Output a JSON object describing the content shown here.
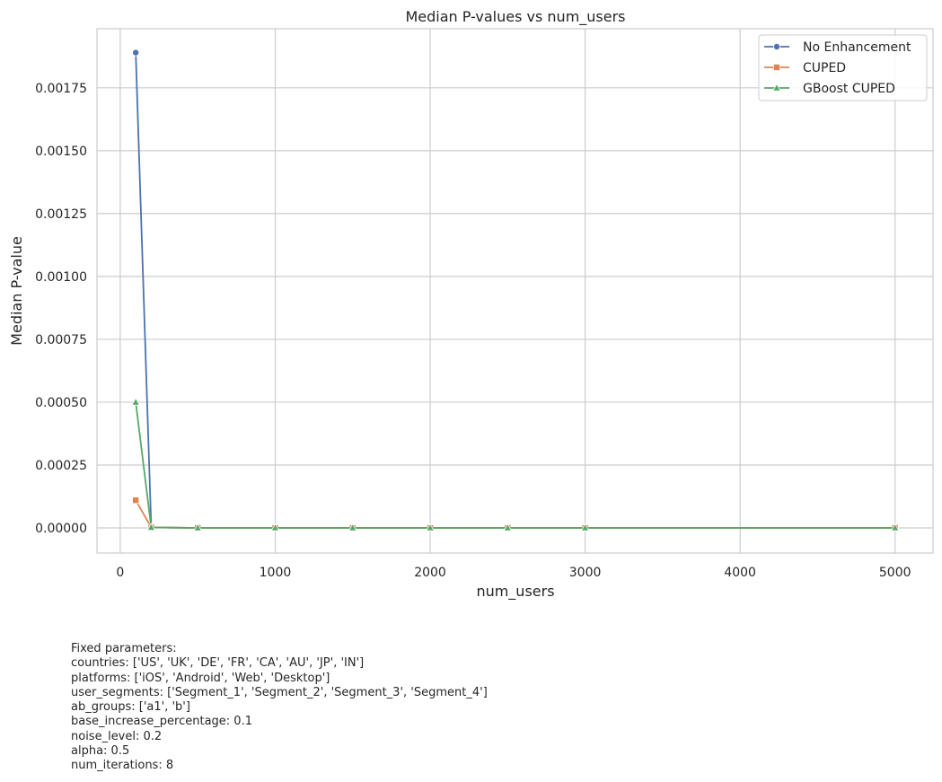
{
  "chart_data": {
    "type": "line",
    "title": "Median P-values vs num_users",
    "xlabel": "num_users",
    "ylabel": "Median P-value",
    "xlim": [
      -150,
      5245
    ],
    "ylim": [
      -0.0001,
      0.001985
    ],
    "xticks": [
      0,
      1000,
      2000,
      3000,
      4000,
      5000
    ],
    "xtick_labels": [
      "0",
      "1000",
      "2000",
      "3000",
      "4000",
      "5000"
    ],
    "yticks": [
      0.0,
      0.00025,
      0.0005,
      0.00075,
      0.001,
      0.00125,
      0.0015,
      0.00175
    ],
    "ytick_labels": [
      "0.00000",
      "0.00025",
      "0.00050",
      "0.00075",
      "0.00100",
      "0.00125",
      "0.00150",
      "0.00175"
    ],
    "grid": true,
    "legend_position": "top-right",
    "x": [
      100,
      200,
      500,
      1000,
      1500,
      2000,
      2500,
      3000,
      5000
    ],
    "series": [
      {
        "name": "No Enhancement",
        "color": "#4c72b0",
        "marker": "circle",
        "values": [
          0.00189,
          2e-06,
          0.0,
          0.0,
          0.0,
          0.0,
          0.0,
          0.0,
          0.0
        ]
      },
      {
        "name": "CUPED",
        "color": "#dd8452",
        "marker": "square",
        "values": [
          0.00011,
          2e-06,
          0.0,
          0.0,
          0.0,
          0.0,
          0.0,
          0.0,
          0.0
        ]
      },
      {
        "name": "GBoost CUPED",
        "color": "#55a868",
        "marker": "triangle",
        "values": [
          0.0005,
          2e-06,
          0.0,
          0.0,
          0.0,
          0.0,
          0.0,
          0.0,
          0.0
        ]
      }
    ]
  },
  "fixed_parameters": {
    "heading": "Fixed parameters:",
    "lines": [
      "countries: ['US', 'UK', 'DE', 'FR', 'CA', 'AU', 'JP', 'IN']",
      "platforms: ['iOS', 'Android', 'Web', 'Desktop']",
      "user_segments: ['Segment_1', 'Segment_2', 'Segment_3', 'Segment_4']",
      "ab_groups: ['a1', 'b']",
      "base_increase_percentage: 0.1",
      "noise_level: 0.2",
      "alpha: 0.5",
      "num_iterations: 8"
    ]
  }
}
